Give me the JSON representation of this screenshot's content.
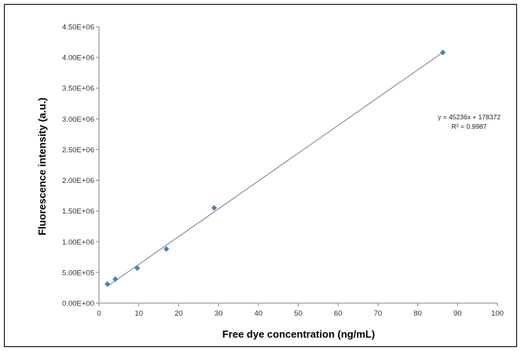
{
  "chart_data": {
    "type": "scatter",
    "title": "",
    "xlabel": "Free dye concentration (ng/mL)",
    "ylabel": "Fluorescence intensity (a.u.)",
    "xlim": [
      0,
      100
    ],
    "ylim": [
      0,
      4500000
    ],
    "x_ticks": [
      "0",
      "10",
      "20",
      "30",
      "40",
      "50",
      "60",
      "70",
      "80",
      "90",
      "100"
    ],
    "y_ticks": [
      "0.00E+00",
      "5.00E+05",
      "1.00E+06",
      "1.50E+06",
      "2.00E+06",
      "2.50E+06",
      "3.00E+06",
      "3.50E+06",
      "4.00E+06",
      "4.50E+06"
    ],
    "grid": false,
    "legend": "none",
    "marker_color": "#4a7ebb",
    "trendline_color": "#7f7f7f",
    "series": [
      {
        "points": [
          {
            "x": 2.1,
            "y": 310000
          },
          {
            "x": 4.1,
            "y": 390000
          },
          {
            "x": 9.6,
            "y": 570000
          },
          {
            "x": 16.9,
            "y": 880000
          },
          {
            "x": 28.9,
            "y": 1550000
          },
          {
            "x": 86.3,
            "y": 4080000
          }
        ]
      }
    ],
    "trendline": {
      "slope": 45236,
      "intercept": 178372,
      "x_start": 2.1,
      "x_end": 86.3
    },
    "annotations": {
      "equation": "y = 45236x + 178372",
      "r_squared": "R² = 0.9987"
    }
  }
}
